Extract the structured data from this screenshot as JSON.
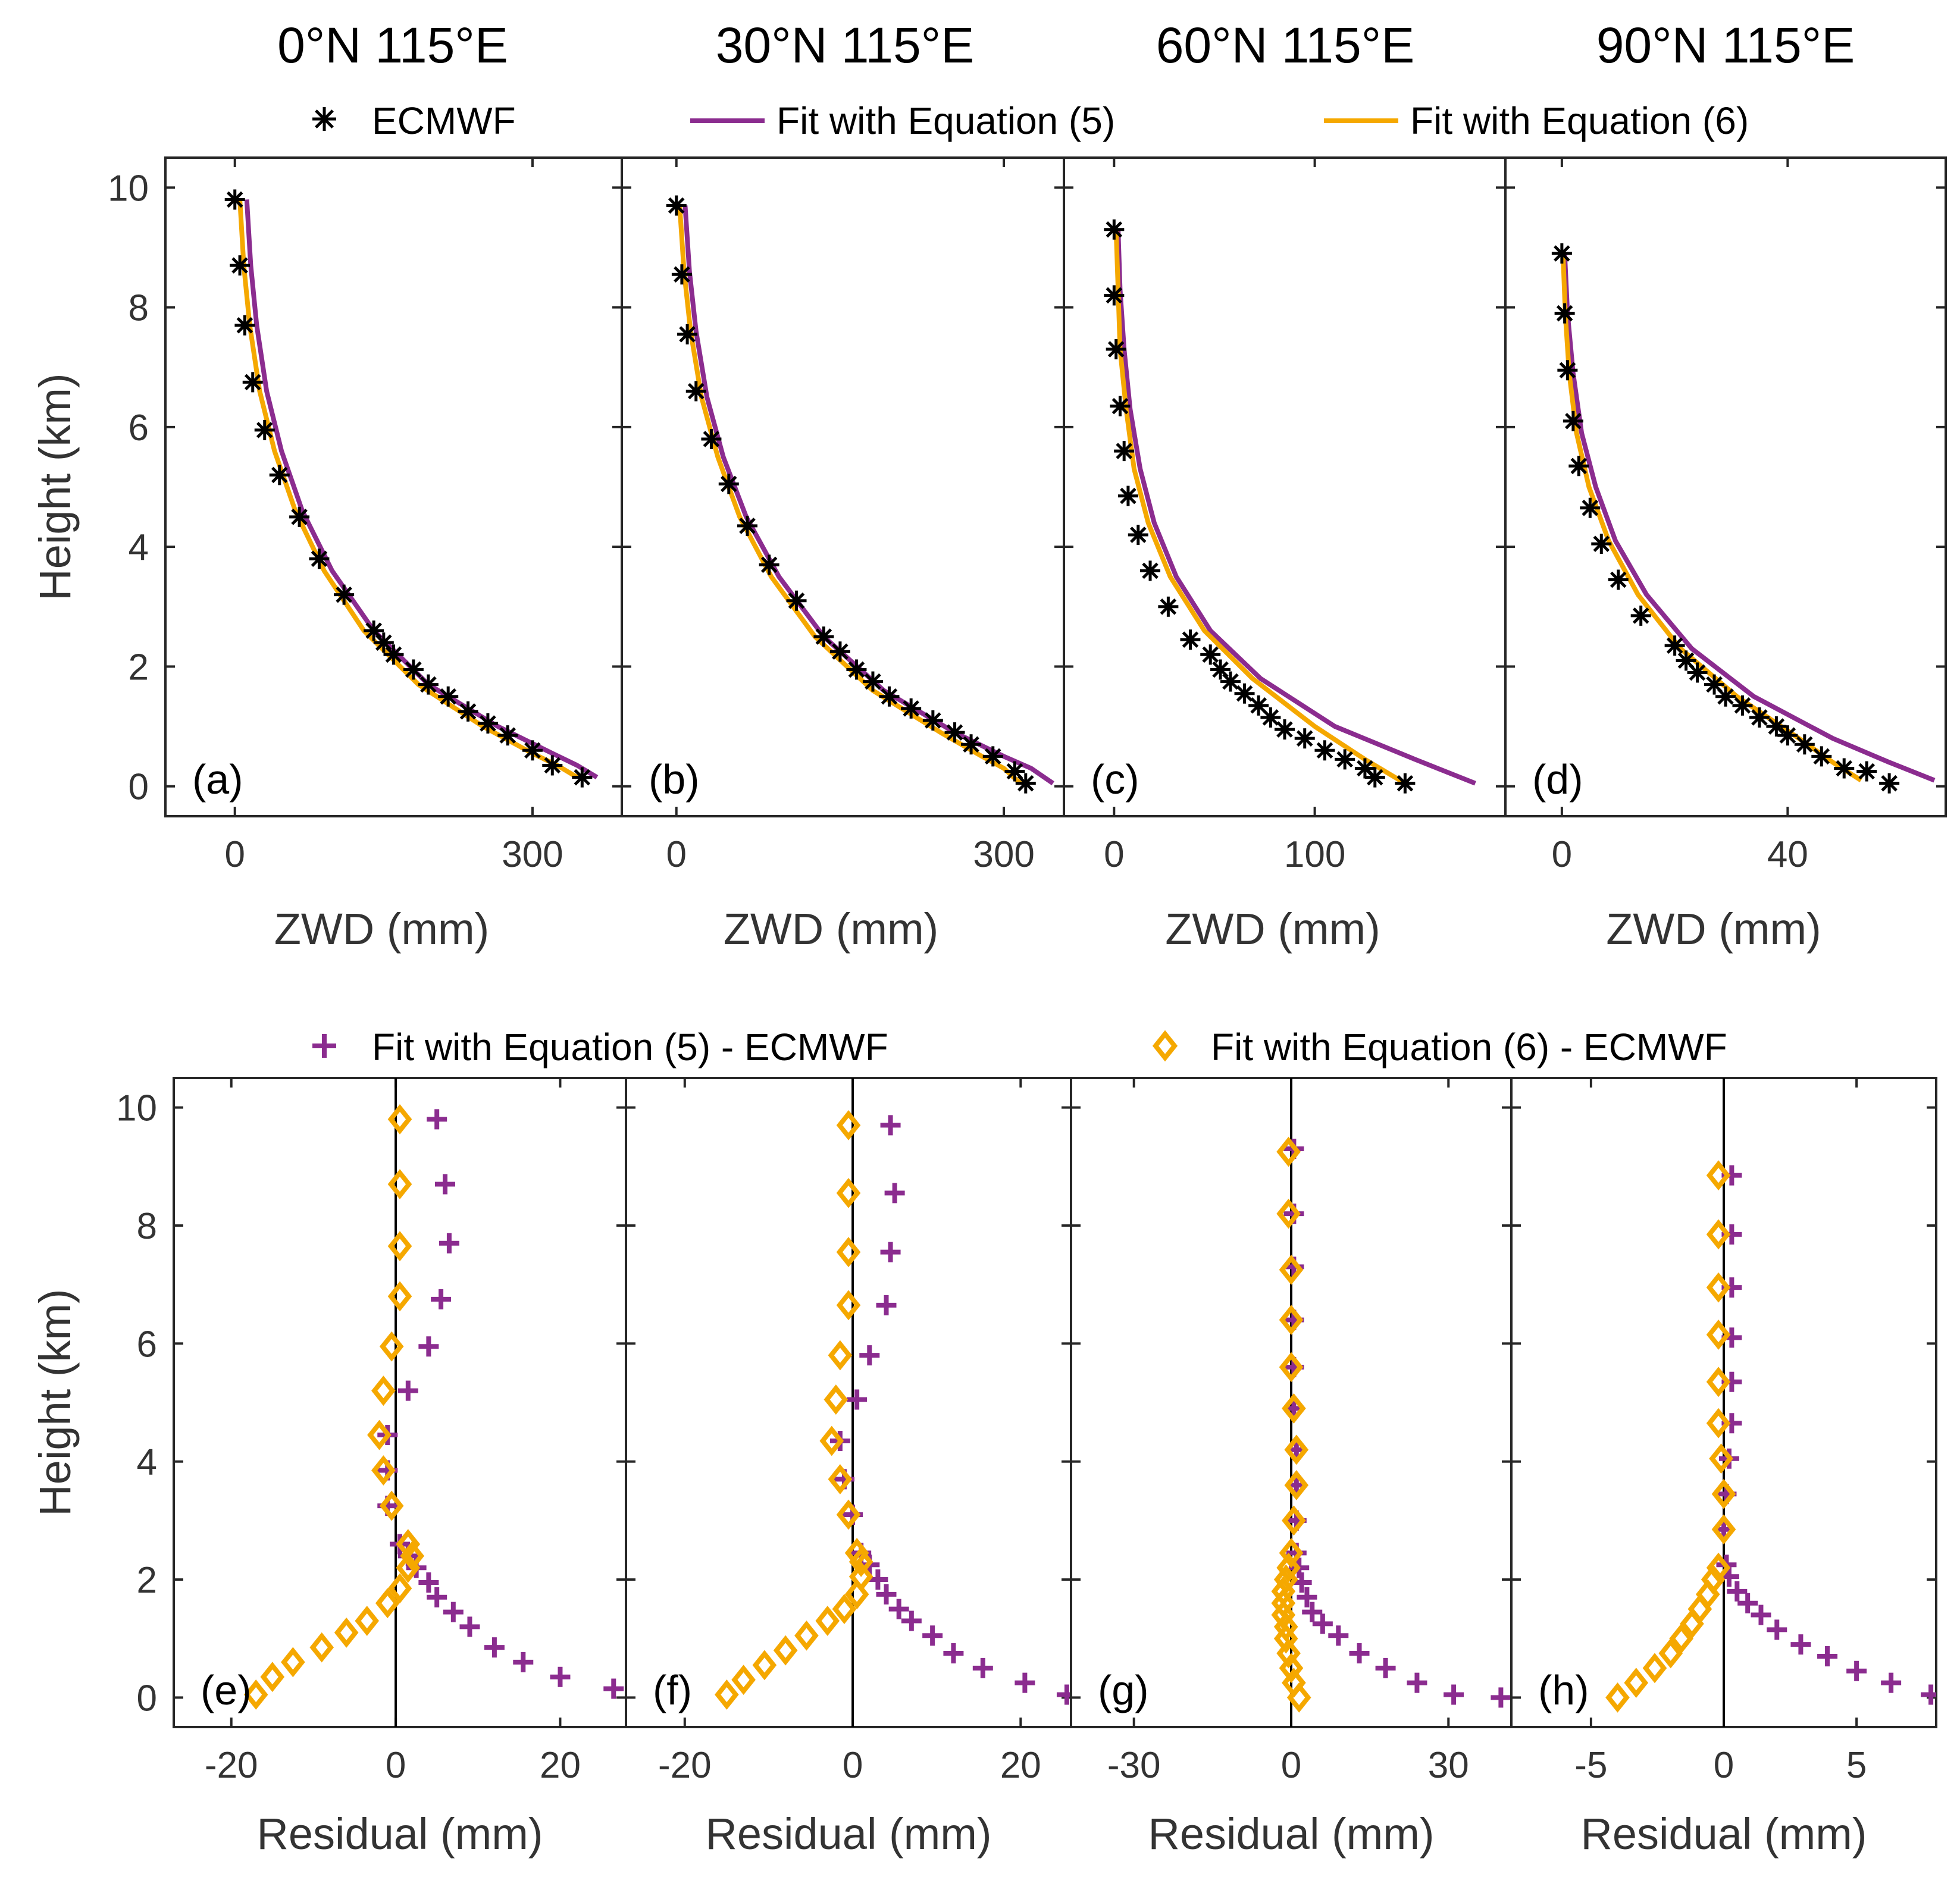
{
  "colors": {
    "eq5": "#8B2C8F",
    "eq6": "#F5A800",
    "ecmwf": "#000000",
    "axis": "#262626",
    "tick_text": "#333333"
  },
  "legend_top": {
    "ecmwf": "ECMWF",
    "eq5": "Fit with Equation (5)",
    "eq6": "Fit with Equation (6)"
  },
  "legend_bottom": {
    "eq5": "Fit with Equation (5) - ECMWF",
    "eq6": "Fit with Equation (6) - ECMWF"
  },
  "chart_data": [
    {
      "type": "line",
      "panel": "(a)",
      "title": "0°N 115°E",
      "xlabel": "ZWD (mm)",
      "ylabel": "Height (km)",
      "xlim": [
        -70,
        390
      ],
      "ylim": [
        -0.5,
        10.5
      ],
      "xticks": [
        0,
        300
      ],
      "yticks": [
        0,
        2,
        4,
        6,
        8,
        10
      ],
      "ecmwf": {
        "x": [
          0,
          5,
          10,
          18,
          30,
          45,
          65,
          85,
          110,
          140,
          150,
          160,
          180,
          195,
          215,
          235,
          255,
          275,
          300,
          320,
          350
        ],
        "y": [
          9.8,
          8.7,
          7.7,
          6.75,
          5.95,
          5.2,
          4.5,
          3.8,
          3.2,
          2.6,
          2.4,
          2.2,
          1.95,
          1.7,
          1.5,
          1.25,
          1.05,
          0.85,
          0.6,
          0.35,
          0.15
        ]
      },
      "fit_eq5": {
        "x": [
          12,
          16,
          22,
          32,
          47,
          68,
          98,
          140,
          195,
          265,
          320,
          345,
          365
        ],
        "y": [
          9.8,
          8.7,
          7.7,
          6.6,
          5.6,
          4.6,
          3.6,
          2.6,
          1.7,
          1.0,
          0.55,
          0.35,
          0.15
        ]
      },
      "fit_eq6": {
        "x": [
          5,
          9,
          15,
          25,
          40,
          61,
          90,
          130,
          185,
          250,
          300,
          325,
          345
        ],
        "y": [
          9.8,
          8.7,
          7.7,
          6.6,
          5.6,
          4.6,
          3.6,
          2.6,
          1.7,
          1.0,
          0.55,
          0.35,
          0.15
        ]
      }
    },
    {
      "type": "line",
      "panel": "(b)",
      "title": "30°N 115°E",
      "xlabel": "ZWD (mm)",
      "ylabel": "",
      "xlim": [
        -50,
        355
      ],
      "ylim": [
        -0.5,
        10.5
      ],
      "xticks": [
        0,
        300
      ],
      "yticks": [
        0,
        2,
        4,
        6,
        8,
        10
      ],
      "ecmwf": {
        "x": [
          0,
          5,
          10,
          18,
          32,
          48,
          65,
          85,
          110,
          135,
          150,
          165,
          180,
          195,
          215,
          235,
          255,
          270,
          290,
          310,
          320
        ],
        "y": [
          9.7,
          8.55,
          7.55,
          6.6,
          5.8,
          5.05,
          4.35,
          3.7,
          3.1,
          2.5,
          2.25,
          1.95,
          1.75,
          1.5,
          1.3,
          1.1,
          0.9,
          0.7,
          0.5,
          0.25,
          0.05
        ]
      },
      "fit_eq5": {
        "x": [
          8,
          12,
          18,
          28,
          43,
          64,
          94,
          135,
          190,
          255,
          300,
          325,
          345
        ],
        "y": [
          9.7,
          8.6,
          7.6,
          6.5,
          5.5,
          4.5,
          3.5,
          2.5,
          1.6,
          0.9,
          0.5,
          0.3,
          0.05
        ]
      },
      "fit_eq6": {
        "x": [
          3,
          7,
          13,
          23,
          38,
          58,
          87,
          127,
          180,
          242,
          280,
          300,
          315
        ],
        "y": [
          9.7,
          8.6,
          7.6,
          6.5,
          5.5,
          4.5,
          3.5,
          2.5,
          1.6,
          0.9,
          0.5,
          0.3,
          0.05
        ]
      }
    },
    {
      "type": "line",
      "panel": "(c)",
      "title": "60°N 115°E",
      "xlabel": "ZWD (mm)",
      "ylabel": "",
      "xlim": [
        -25,
        195
      ],
      "ylim": [
        -0.5,
        10.5
      ],
      "xticks": [
        0,
        100
      ],
      "yticks": [
        0,
        2,
        4,
        6,
        8,
        10
      ],
      "ecmwf": {
        "x": [
          0,
          0,
          1,
          3,
          5,
          7,
          12,
          18,
          27,
          38,
          48,
          53,
          58,
          65,
          72,
          78,
          85,
          95,
          105,
          115,
          125,
          130,
          145
        ],
        "y": [
          9.3,
          8.2,
          7.3,
          6.35,
          5.6,
          4.85,
          4.2,
          3.6,
          3.0,
          2.45,
          2.2,
          1.95,
          1.75,
          1.55,
          1.35,
          1.15,
          0.95,
          0.8,
          0.6,
          0.45,
          0.3,
          0.15,
          0.05
        ]
      },
      "fit_eq5": {
        "x": [
          2,
          3,
          5,
          8,
          13,
          20,
          31,
          48,
          73,
          110,
          150,
          180
        ],
        "y": [
          9.3,
          8.3,
          7.3,
          6.3,
          5.3,
          4.4,
          3.5,
          2.6,
          1.8,
          1.0,
          0.45,
          0.05
        ]
      },
      "fit_eq6": {
        "x": [
          1,
          2,
          3,
          6,
          10,
          17,
          28,
          45,
          69,
          100,
          125,
          145
        ],
        "y": [
          9.3,
          8.3,
          7.3,
          6.3,
          5.3,
          4.4,
          3.5,
          2.6,
          1.8,
          1.0,
          0.45,
          0.05
        ]
      }
    },
    {
      "type": "line",
      "panel": "(d)",
      "title": "90°N 115°E",
      "xlabel": "ZWD (mm)",
      "ylabel": "",
      "xlim": [
        -10,
        68
      ],
      "ylim": [
        -0.5,
        10.5
      ],
      "xticks": [
        0,
        40
      ],
      "yticks": [
        0,
        2,
        4,
        6,
        8,
        10
      ],
      "ecmwf": {
        "x": [
          0,
          0.5,
          1,
          2,
          3,
          5,
          7,
          10,
          14,
          20,
          22,
          24,
          27,
          29,
          32,
          35,
          38,
          40,
          43,
          46,
          50,
          54,
          58
        ],
        "y": [
          8.9,
          7.9,
          6.95,
          6.1,
          5.35,
          4.65,
          4.05,
          3.45,
          2.85,
          2.35,
          2.1,
          1.9,
          1.7,
          1.5,
          1.35,
          1.15,
          1.0,
          0.85,
          0.7,
          0.5,
          0.3,
          0.25,
          0.05
        ]
      },
      "fit_eq5": {
        "x": [
          0.5,
          1,
          2,
          3.5,
          6,
          9.5,
          15,
          23,
          34,
          48,
          58,
          66
        ],
        "y": [
          8.9,
          7.9,
          6.9,
          5.9,
          5.0,
          4.1,
          3.2,
          2.3,
          1.5,
          0.8,
          0.4,
          0.1
        ]
      },
      "fit_eq6": {
        "x": [
          0.2,
          0.6,
          1.3,
          2.6,
          4.8,
          8.3,
          13.5,
          21,
          31,
          42,
          48,
          53
        ],
        "y": [
          8.9,
          7.9,
          6.9,
          5.9,
          5.0,
          4.1,
          3.2,
          2.3,
          1.5,
          0.8,
          0.4,
          0.1
        ]
      }
    },
    {
      "type": "scatter",
      "panel": "(e)",
      "title": "",
      "xlabel": "Residual (mm)",
      "ylabel": "Height (km)",
      "xlim": [
        -27,
        28
      ],
      "ylim": [
        -0.5,
        10.5
      ],
      "xticks": [
        -20,
        0,
        20
      ],
      "yticks": [
        0,
        2,
        4,
        6,
        8,
        10
      ],
      "series": [
        {
          "name": "Fit with Equation (5) - ECMWF",
          "x": [
            5,
            6,
            6.5,
            5.5,
            4,
            1.5,
            -1,
            -1,
            -1,
            0.5,
            1.5,
            2.5,
            4,
            5,
            7,
            9,
            12,
            15.5,
            20,
            26.5
          ],
          "y": [
            9.8,
            8.7,
            7.7,
            6.75,
            5.95,
            5.2,
            4.45,
            3.85,
            3.25,
            2.6,
            2.4,
            2.2,
            1.95,
            1.7,
            1.45,
            1.2,
            0.85,
            0.6,
            0.35,
            0.15
          ]
        },
        {
          "name": "Fit with Equation (6) - ECMWF",
          "x": [
            0.5,
            0.5,
            0.5,
            0.5,
            -0.5,
            -1.5,
            -2,
            -1.5,
            -0.5,
            1.5,
            2,
            1.5,
            0.5,
            -1,
            -3.5,
            -6,
            -9,
            -12.5,
            -15,
            -17
          ],
          "y": [
            9.8,
            8.7,
            7.65,
            6.8,
            5.95,
            5.2,
            4.45,
            3.85,
            3.25,
            2.6,
            2.4,
            2.2,
            1.85,
            1.6,
            1.3,
            1.1,
            0.85,
            0.6,
            0.35,
            0.05
          ]
        }
      ]
    },
    {
      "type": "scatter",
      "panel": "(f)",
      "title": "",
      "xlabel": "Residual (mm)",
      "ylabel": "",
      "xlim": [
        -27,
        26
      ],
      "ylim": [
        -0.5,
        10.5
      ],
      "xticks": [
        -20,
        0,
        20
      ],
      "yticks": [
        0,
        2,
        4,
        6,
        8,
        10
      ],
      "series": [
        {
          "name": "Fit with Equation (5) - ECMWF",
          "x": [
            4.5,
            5,
            4.5,
            4,
            2,
            0.5,
            -1.5,
            -1,
            0,
            1,
            2,
            3,
            4,
            5.5,
            7,
            9.5,
            12,
            15.5,
            20.5,
            25.5
          ],
          "y": [
            9.7,
            8.55,
            7.55,
            6.65,
            5.8,
            5.05,
            4.35,
            3.7,
            3.1,
            2.45,
            2.25,
            2.0,
            1.75,
            1.5,
            1.3,
            1.05,
            0.75,
            0.5,
            0.25,
            0.05
          ]
        },
        {
          "name": "Fit with Equation (6) - ECMWF",
          "x": [
            -0.5,
            -0.5,
            -0.5,
            -0.5,
            -1.5,
            -2,
            -2.5,
            -1.5,
            -0.5,
            0.5,
            1,
            1,
            0.5,
            -1,
            -3,
            -5.5,
            -8,
            -10.5,
            -13,
            -15
          ],
          "y": [
            9.7,
            8.55,
            7.55,
            6.65,
            5.8,
            5.05,
            4.35,
            3.7,
            3.1,
            2.45,
            2.3,
            2.05,
            1.75,
            1.5,
            1.3,
            1.05,
            0.8,
            0.55,
            0.3,
            0.05
          ]
        }
      ]
    },
    {
      "type": "scatter",
      "panel": "(g)",
      "title": "",
      "xlabel": "Residual (mm)",
      "ylabel": "",
      "xlim": [
        -42,
        42
      ],
      "ylim": [
        -0.5,
        10.5
      ],
      "xticks": [
        -30,
        0,
        30
      ],
      "yticks": [
        0,
        2,
        4,
        6,
        8,
        10
      ],
      "series": [
        {
          "name": "Fit with Equation (5) - ECMWF",
          "x": [
            0.5,
            0.5,
            0.5,
            0.5,
            0.5,
            0.5,
            1,
            1,
            1,
            1,
            1.5,
            2,
            3,
            4,
            6,
            9,
            13,
            18,
            24,
            31,
            40
          ],
          "y": [
            9.3,
            8.2,
            7.3,
            6.4,
            5.6,
            4.9,
            4.2,
            3.6,
            3.0,
            2.45,
            2.2,
            1.95,
            1.7,
            1.45,
            1.25,
            1.05,
            0.75,
            0.5,
            0.25,
            0.05,
            0.0
          ]
        },
        {
          "name": "Fit with Equation (6) - ECMWF",
          "x": [
            -0.5,
            -0.5,
            0,
            0,
            0,
            0.5,
            1,
            1,
            0.5,
            0,
            -0.5,
            -1,
            -1.5,
            -1.5,
            -1.5,
            -1,
            -1,
            -0.5,
            0,
            0.5,
            1.5
          ],
          "y": [
            9.25,
            8.2,
            7.25,
            6.4,
            5.6,
            4.9,
            4.2,
            3.6,
            3.0,
            2.45,
            2.2,
            2.0,
            1.8,
            1.6,
            1.4,
            1.2,
            1.0,
            0.75,
            0.5,
            0.25,
            0.0
          ]
        }
      ]
    },
    {
      "type": "scatter",
      "panel": "(h)",
      "title": "",
      "xlabel": "Residual (mm)",
      "ylabel": "",
      "xlim": [
        -8,
        8
      ],
      "ylim": [
        -0.5,
        10.5
      ],
      "xticks": [
        -5,
        0,
        5
      ],
      "yticks": [
        0,
        2,
        4,
        6,
        8,
        10
      ],
      "series": [
        {
          "name": "Fit with Equation (5) - ECMWF",
          "x": [
            0.3,
            0.3,
            0.3,
            0.3,
            0.3,
            0.3,
            0.2,
            0.1,
            0,
            0.1,
            0.2,
            0.5,
            0.9,
            1.4,
            2,
            2.9,
            3.9,
            5,
            6.3,
            7.8
          ],
          "y": [
            8.85,
            7.85,
            6.95,
            6.1,
            5.35,
            4.65,
            4.05,
            3.45,
            2.85,
            2.25,
            2.05,
            1.8,
            1.6,
            1.4,
            1.15,
            0.9,
            0.7,
            0.45,
            0.25,
            0.05
          ]
        },
        {
          "name": "Fit with Equation (6) - ECMWF",
          "x": [
            -0.2,
            -0.2,
            -0.2,
            -0.2,
            -0.2,
            -0.2,
            -0.1,
            0,
            0,
            -0.2,
            -0.4,
            -0.6,
            -0.9,
            -1.2,
            -1.6,
            -2,
            -2.6,
            -3.3,
            -4
          ],
          "y": [
            8.85,
            7.85,
            6.95,
            6.15,
            5.35,
            4.65,
            4.05,
            3.45,
            2.85,
            2.2,
            2.0,
            1.75,
            1.5,
            1.25,
            1.0,
            0.75,
            0.5,
            0.25,
            0.0
          ]
        }
      ]
    }
  ]
}
